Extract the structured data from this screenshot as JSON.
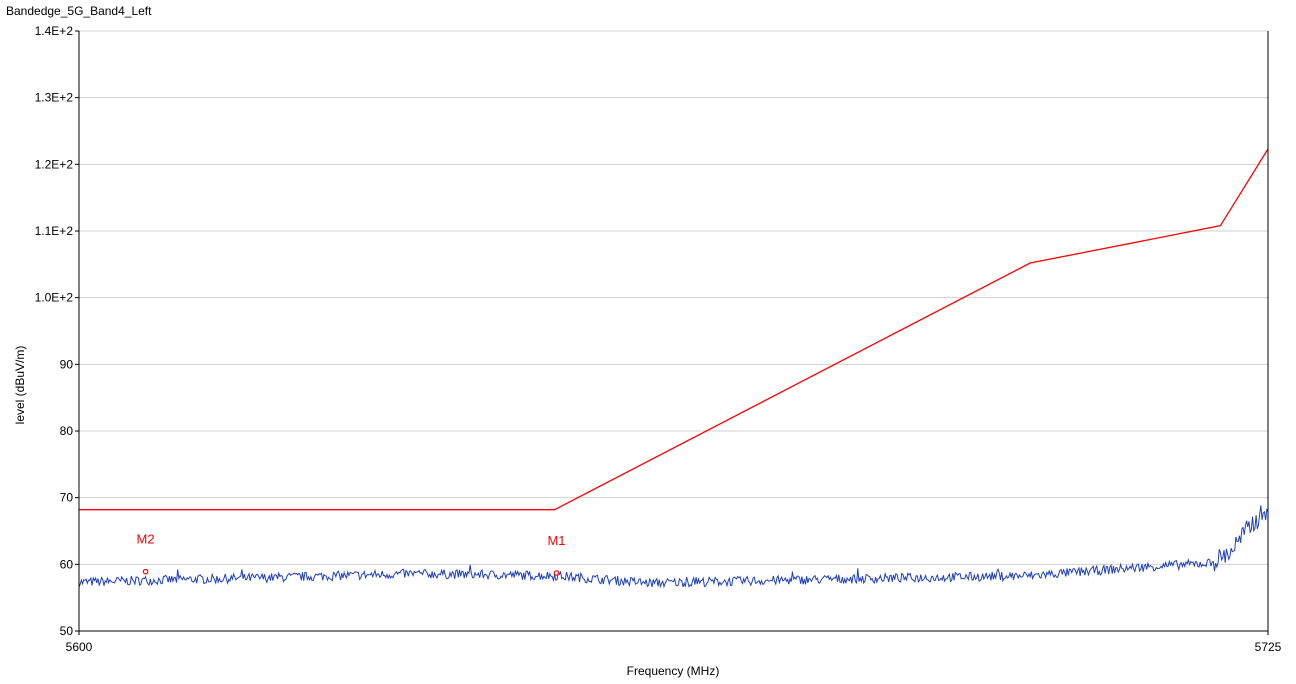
{
  "chart_data": {
    "type": "line",
    "title": "Bandedge_5G_Band4_Left",
    "xlabel": "Frequency (MHz)",
    "ylabel": "level (dBuV/m)",
    "xlim": [
      5600,
      5725
    ],
    "ylim": [
      50,
      140
    ],
    "x_ticks": [
      {
        "value": 5600,
        "label": "5600"
      },
      {
        "value": 5725,
        "label": "5725"
      }
    ],
    "y_ticks": [
      {
        "value": 50,
        "label": "50"
      },
      {
        "value": 60,
        "label": "60"
      },
      {
        "value": 70,
        "label": "70"
      },
      {
        "value": 80,
        "label": "80"
      },
      {
        "value": 90,
        "label": "90"
      },
      {
        "value": 100,
        "label": "1.0E+2"
      },
      {
        "value": 110,
        "label": "1.1E+2"
      },
      {
        "value": 120,
        "label": "1.2E+2"
      },
      {
        "value": 130,
        "label": "1.3E+2"
      },
      {
        "value": 140,
        "label": "1.4E+2"
      }
    ],
    "grid": true,
    "limit_line": {
      "color": "#ff0000",
      "points": [
        [
          5600,
          68.2
        ],
        [
          5650,
          68.2
        ],
        [
          5700,
          105.2
        ],
        [
          5720,
          110.8
        ],
        [
          5725,
          122.3
        ]
      ]
    },
    "measurement": {
      "color": "#1f3fc4",
      "anchors": [
        [
          5600,
          57.3
        ],
        [
          5607,
          57.6
        ],
        [
          5620,
          58.0
        ],
        [
          5635,
          58.6
        ],
        [
          5650,
          58.3
        ],
        [
          5660,
          57.2
        ],
        [
          5680,
          57.8
        ],
        [
          5700,
          58.3
        ],
        [
          5712,
          59.6
        ],
        [
          5719,
          60.2
        ],
        [
          5721,
          61.8
        ],
        [
          5723,
          65.5
        ],
        [
          5725,
          68.5
        ]
      ],
      "noise": 0.7
    },
    "markers": [
      {
        "label": "M1",
        "x": 5650.2,
        "y": 58.7,
        "color": "#ff0000"
      },
      {
        "label": "M2",
        "x": 5607.0,
        "y": 58.9,
        "color": "#ff0000"
      }
    ]
  }
}
